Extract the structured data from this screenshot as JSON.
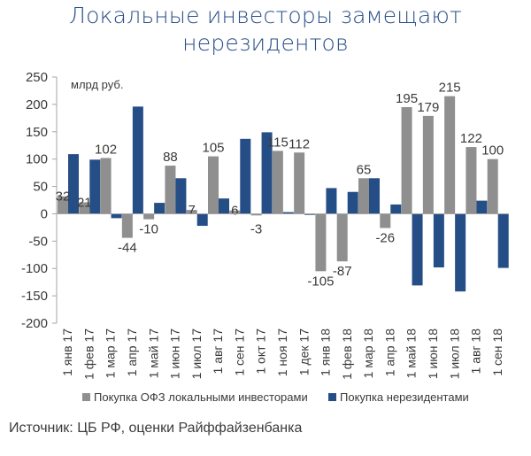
{
  "title": {
    "line1": "Локальные инвесторы замещают",
    "line2": "нерезидентов"
  },
  "source": "Источник: ЦБ РФ, оценки Райффайзенбанка",
  "colors": {
    "title": "#2a4f88",
    "local": "#8f8f8f",
    "nonres": "#254e86",
    "axis": "#a6a6a6",
    "text": "#3a3a3a"
  },
  "chart_data": {
    "type": "bar",
    "unit_label": "млрд руб.",
    "categories": [
      "1 янв 17",
      "1 фев 17",
      "1 мар 17",
      "1 апр 17",
      "1 май 17",
      "1 июн 17",
      "1 июл 17",
      "1 авг 17",
      "1 сен 17",
      "1 окт 17",
      "1 ноя 17",
      "1 дек 17",
      "1 янв 18",
      "1 фев 18",
      "1 мар 18",
      "1 апр 18",
      "1 май 18",
      "1 июн 18",
      "1 июл 18",
      "1 авг 18",
      "1 сен 18"
    ],
    "ylim": [
      -200,
      250
    ],
    "yticks": [
      -200,
      -150,
      -100,
      -50,
      0,
      50,
      100,
      150,
      200,
      250
    ],
    "grid": false,
    "legend_position": "bottom",
    "series": [
      {
        "name": "Покупка ОФЗ локальными инвесторами",
        "values": [
          32,
          21,
          102,
          -44,
          -10,
          88,
          7,
          105,
          6,
          -3,
          115,
          112,
          -105,
          -87,
          65,
          -26,
          195,
          179,
          215,
          122,
          100
        ],
        "labels": [
          "32",
          "21",
          "102",
          "-44",
          "-10",
          "88",
          "7",
          "105",
          "6",
          "-3",
          "115",
          "112",
          "-105",
          "-87",
          "65",
          "-26",
          "195",
          "179",
          "215",
          "122",
          "100"
        ]
      },
      {
        "name": "Покупка нерезидентами",
        "values": [
          109,
          99,
          -8,
          196,
          20,
          65,
          -22,
          28,
          137,
          149,
          3,
          -2,
          47,
          40,
          65,
          17,
          -131,
          -98,
          -142,
          24,
          -99
        ]
      }
    ]
  }
}
